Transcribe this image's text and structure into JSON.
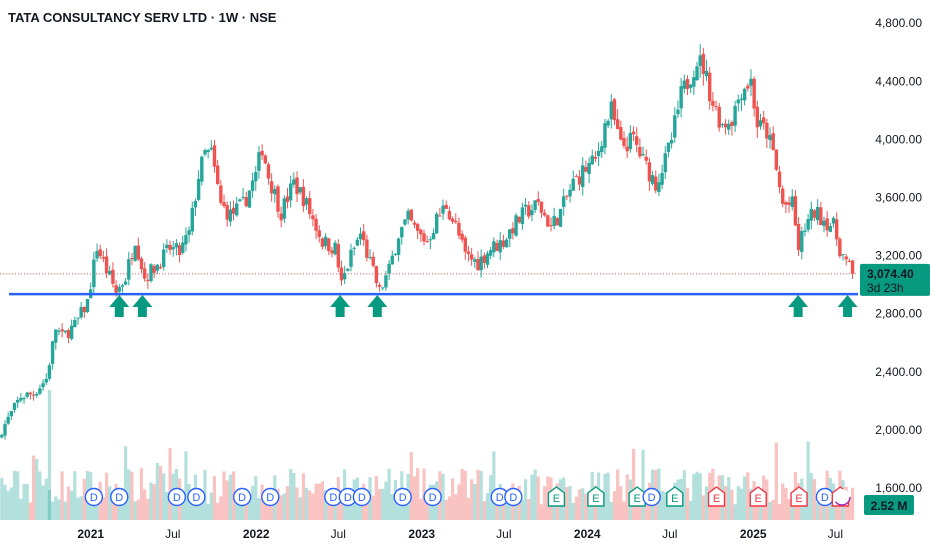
{
  "header": {
    "title": "TATA CONSULTANCY SERV LTD · 1W · NSE"
  },
  "colors": {
    "up": "#26a69a",
    "down": "#ef5350",
    "support": "#2962ff",
    "arrow": "#089981",
    "dividend": "#2962ff",
    "earnings_up": "#089981",
    "earnings_down": "#f23645",
    "axis_text": "#131722"
  },
  "price_badge": {
    "price": "3,074.40",
    "countdown": "3d 23h"
  },
  "volume_badge": {
    "value": "2.52 M"
  },
  "chart_data": {
    "type": "candlestick",
    "title": "TATA CONSULTANCY SERV LTD · 1W · NSE",
    "y_ticks": [
      "4,800.00",
      "4,400.00",
      "4,000.00",
      "3,600.00",
      "3,200.00",
      "2,800.00",
      "2,400.00",
      "2,000.00",
      "1,600.00"
    ],
    "y_tick_values": [
      4800,
      4400,
      4000,
      3600,
      3200,
      2800,
      2400,
      2000,
      1600
    ],
    "ylim": [
      1380,
      4960
    ],
    "x_ticks": [
      "2021",
      "Jul",
      "2022",
      "Jul",
      "2023",
      "Jul",
      "2024",
      "Jul",
      "2025",
      "Jul"
    ],
    "x_tick_dates": [
      "2021-01-01",
      "2021-07-01",
      "2022-01-01",
      "2022-07-01",
      "2023-01-01",
      "2023-07-01",
      "2024-01-01",
      "2024-07-01",
      "2025-01-01",
      "2025-07-01"
    ],
    "xlim": [
      "2020-06-15",
      "2025-08-20"
    ],
    "last_price": 3074.4,
    "support_level": 2935,
    "arrow_dates": [
      "2021-03-05",
      "2021-04-25",
      "2022-07-05",
      "2022-09-25",
      "2025-04-10",
      "2025-07-28"
    ],
    "closes": [
      [
        "2020-06-19",
        2000
      ],
      [
        "2020-07-31",
        2230
      ],
      [
        "2020-08-28",
        2250
      ],
      [
        "2020-09-25",
        2350
      ],
      [
        "2020-10-16",
        2700
      ],
      [
        "2020-10-30",
        2640
      ],
      [
        "2020-11-27",
        2720
      ],
      [
        "2020-12-25",
        2880
      ],
      [
        "2021-01-15",
        3260
      ],
      [
        "2021-02-05",
        3100
      ],
      [
        "2021-02-26",
        2950
      ],
      [
        "2021-03-19",
        3050
      ],
      [
        "2021-04-09",
        3320
      ],
      [
        "2021-04-30",
        3050
      ],
      [
        "2021-05-28",
        3140
      ],
      [
        "2021-06-25",
        3250
      ],
      [
        "2021-07-16",
        3220
      ],
      [
        "2021-08-06",
        3350
      ],
      [
        "2021-08-27",
        3750
      ],
      [
        "2021-09-10",
        3900
      ],
      [
        "2021-09-24",
        3900
      ],
      [
        "2021-10-15",
        3550
      ],
      [
        "2021-11-05",
        3480
      ],
      [
        "2021-12-03",
        3550
      ],
      [
        "2021-12-31",
        3750
      ],
      [
        "2022-01-14",
        3950
      ],
      [
        "2022-01-28",
        3750
      ],
      [
        "2022-02-25",
        3500
      ],
      [
        "2022-03-25",
        3700
      ],
      [
        "2022-04-15",
        3600
      ],
      [
        "2022-05-06",
        3450
      ],
      [
        "2022-05-27",
        3300
      ],
      [
        "2022-06-24",
        3250
      ],
      [
        "2022-07-08",
        3000
      ],
      [
        "2022-07-29",
        3200
      ],
      [
        "2022-08-19",
        3350
      ],
      [
        "2022-09-09",
        3150
      ],
      [
        "2022-09-30",
        2950
      ],
      [
        "2022-10-21",
        3100
      ],
      [
        "2022-11-11",
        3350
      ],
      [
        "2022-12-02",
        3450
      ],
      [
        "2022-12-23",
        3350
      ],
      [
        "2023-01-13",
        3300
      ],
      [
        "2023-02-03",
        3450
      ],
      [
        "2023-02-24",
        3550
      ],
      [
        "2023-03-17",
        3400
      ],
      [
        "2023-04-07",
        3200
      ],
      [
        "2023-05-05",
        3150
      ],
      [
        "2023-06-02",
        3250
      ],
      [
        "2023-06-30",
        3300
      ],
      [
        "2023-07-21",
        3400
      ],
      [
        "2023-08-18",
        3500
      ],
      [
        "2023-09-15",
        3550
      ],
      [
        "2023-10-13",
        3400
      ],
      [
        "2023-11-03",
        3500
      ],
      [
        "2023-12-01",
        3700
      ],
      [
        "2023-12-29",
        3800
      ],
      [
        "2024-01-19",
        3850
      ],
      [
        "2024-02-09",
        4100
      ],
      [
        "2024-02-23",
        4200
      ],
      [
        "2024-03-15",
        3950
      ],
      [
        "2024-04-12",
        4000
      ],
      [
        "2024-05-03",
        3850
      ],
      [
        "2024-05-31",
        3700
      ],
      [
        "2024-06-21",
        3850
      ],
      [
        "2024-07-05",
        4000
      ],
      [
        "2024-07-26",
        4300
      ],
      [
        "2024-08-16",
        4450
      ],
      [
        "2024-08-30",
        4550
      ],
      [
        "2024-09-13",
        4500
      ],
      [
        "2024-10-04",
        4250
      ],
      [
        "2024-10-25",
        4100
      ],
      [
        "2024-11-15",
        4150
      ],
      [
        "2024-12-06",
        4350
      ],
      [
        "2024-12-27",
        4400
      ],
      [
        "2025-01-10",
        4100
      ],
      [
        "2025-01-31",
        4050
      ],
      [
        "2025-02-14",
        3900
      ],
      [
        "2025-03-07",
        3550
      ],
      [
        "2025-03-28",
        3550
      ],
      [
        "2025-04-11",
        3250
      ],
      [
        "2025-04-25",
        3400
      ],
      [
        "2025-05-16",
        3500
      ],
      [
        "2025-06-06",
        3450
      ],
      [
        "2025-06-27",
        3400
      ],
      [
        "2025-07-11",
        3250
      ],
      [
        "2025-07-25",
        3150
      ],
      [
        "2025-08-08",
        3074
      ]
    ],
    "events": [
      {
        "date": "2021-01-08",
        "label": "D"
      },
      {
        "date": "2021-03-05",
        "label": "D"
      },
      {
        "date": "2021-07-10",
        "label": "D"
      },
      {
        "date": "2021-08-22",
        "label": "D"
      },
      {
        "date": "2021-12-01",
        "label": "D"
      },
      {
        "date": "2022-02-01",
        "label": "D"
      },
      {
        "date": "2022-06-20",
        "label": "D"
      },
      {
        "date": "2022-07-22",
        "label": "D"
      },
      {
        "date": "2022-08-22",
        "label": "D"
      },
      {
        "date": "2022-11-20",
        "label": "D"
      },
      {
        "date": "2023-01-25",
        "label": "D"
      },
      {
        "date": "2023-06-22",
        "label": "D"
      },
      {
        "date": "2023-07-22",
        "label": "D"
      },
      {
        "date": "2023-10-25",
        "label": "E"
      },
      {
        "date": "2024-01-20",
        "label": "E"
      },
      {
        "date": "2024-04-20",
        "label": "E"
      },
      {
        "date": "2024-05-22",
        "label": "D"
      },
      {
        "date": "2024-07-12",
        "label": "E"
      },
      {
        "date": "2024-10-12",
        "label": "E"
      },
      {
        "date": "2025-01-12",
        "label": "E"
      },
      {
        "date": "2025-04-12",
        "label": "E"
      },
      {
        "date": "2025-06-08",
        "label": "D"
      },
      {
        "date": "2025-07-12",
        "label": "E"
      }
    ]
  }
}
